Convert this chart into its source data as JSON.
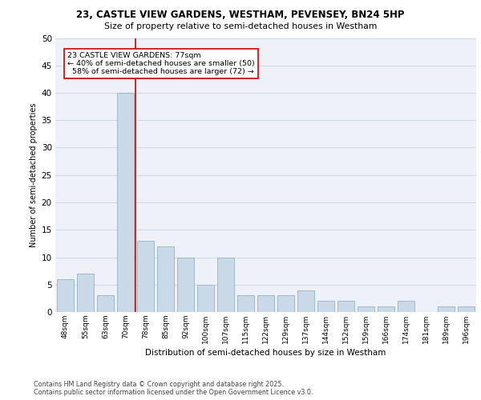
{
  "title1": "23, CASTLE VIEW GARDENS, WESTHAM, PEVENSEY, BN24 5HP",
  "title2": "Size of property relative to semi-detached houses in Westham",
  "xlabel": "Distribution of semi-detached houses by size in Westham",
  "ylabel": "Number of semi-detached properties",
  "categories": [
    "48sqm",
    "55sqm",
    "63sqm",
    "70sqm",
    "78sqm",
    "85sqm",
    "92sqm",
    "100sqm",
    "107sqm",
    "115sqm",
    "122sqm",
    "129sqm",
    "137sqm",
    "144sqm",
    "152sqm",
    "159sqm",
    "166sqm",
    "174sqm",
    "181sqm",
    "189sqm",
    "196sqm"
  ],
  "values": [
    6,
    7,
    3,
    40,
    13,
    12,
    10,
    5,
    10,
    3,
    3,
    3,
    4,
    2,
    2,
    1,
    1,
    2,
    0,
    1,
    1
  ],
  "bar_color": "#c9d9e8",
  "bar_edge_color": "#a0b8cc",
  "grid_color": "#d0d8e8",
  "background_color": "#eef2f8",
  "red_line_index": 3,
  "red_line_color": "#cc0000",
  "annotation_line1": "23 CASTLE VIEW GARDENS: 77sqm",
  "annotation_line2": "← 40% of semi-detached houses are smaller (50)",
  "annotation_line3": "  58% of semi-detached houses are larger (72) →",
  "annotation_box_color": "#ffffff",
  "annotation_box_edge": "#cc0000",
  "ylim": [
    0,
    50
  ],
  "yticks": [
    0,
    5,
    10,
    15,
    20,
    25,
    30,
    35,
    40,
    45,
    50
  ],
  "footer1": "Contains HM Land Registry data © Crown copyright and database right 2025.",
  "footer2": "Contains public sector information licensed under the Open Government Licence v3.0."
}
